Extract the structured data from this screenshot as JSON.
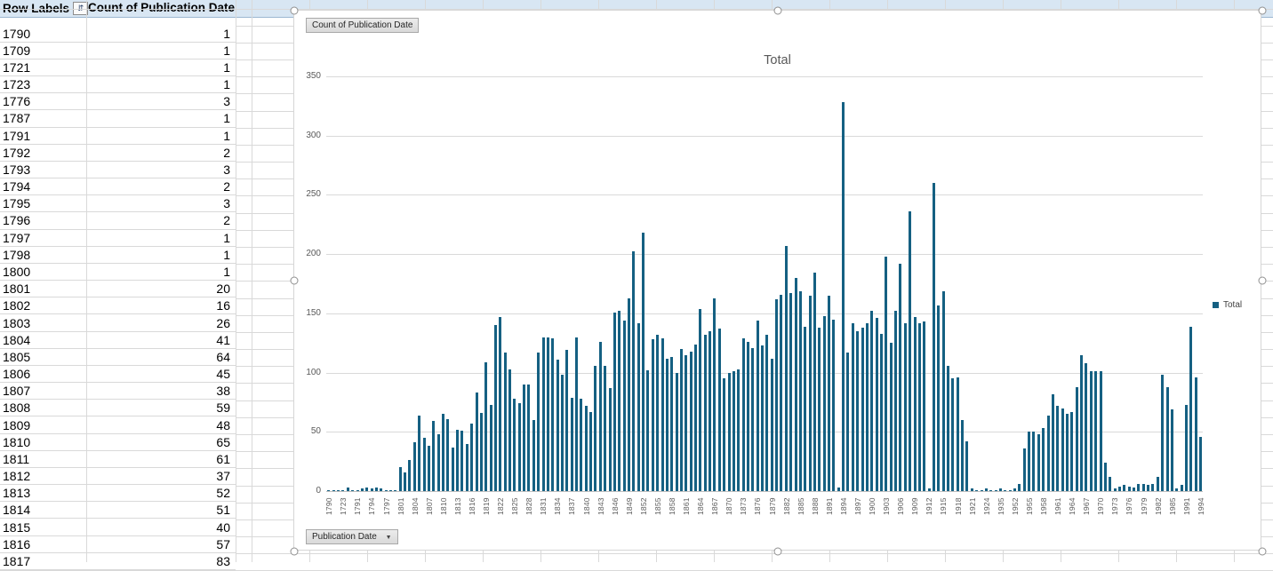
{
  "sheet": {
    "gridline_color": "#d9d9d9",
    "row_height": 19.18,
    "column_lines_x": [
      97,
      265,
      283
    ],
    "body_column_pitch": 65
  },
  "pivot_table": {
    "header": {
      "row_labels": "Row Labels",
      "values_label": "Count of Publication Date",
      "sort_icon": "⇵",
      "header_bg": "#d8e6f3"
    },
    "rows": [
      [
        "1790",
        1
      ],
      [
        "1709",
        1
      ],
      [
        "1721",
        1
      ],
      [
        "1723",
        1
      ],
      [
        "1776",
        3
      ],
      [
        "1787",
        1
      ],
      [
        "1791",
        1
      ],
      [
        "1792",
        2
      ],
      [
        "1793",
        3
      ],
      [
        "1794",
        2
      ],
      [
        "1795",
        3
      ],
      [
        "1796",
        2
      ],
      [
        "1797",
        1
      ],
      [
        "1798",
        1
      ],
      [
        "1800",
        1
      ],
      [
        "1801",
        20
      ],
      [
        "1802",
        16
      ],
      [
        "1803",
        26
      ],
      [
        "1804",
        41
      ],
      [
        "1805",
        64
      ],
      [
        "1806",
        45
      ],
      [
        "1807",
        38
      ],
      [
        "1808",
        59
      ],
      [
        "1809",
        48
      ],
      [
        "1810",
        65
      ],
      [
        "1811",
        61
      ],
      [
        "1812",
        37
      ],
      [
        "1813",
        52
      ],
      [
        "1814",
        51
      ],
      [
        "1815",
        40
      ],
      [
        "1816",
        57
      ],
      [
        "1817",
        83
      ]
    ]
  },
  "chart": {
    "value_field_button": "Count of Publication Date",
    "axis_field_button": "Publication Date",
    "axis_field_arrow": "▼",
    "title": "Total",
    "legend_label": "Total",
    "bar_color": "#156082",
    "text_color": "#595959",
    "y_ticks": [
      0,
      50,
      100,
      150,
      200,
      250,
      300,
      350
    ],
    "x_label_interval": 3
  },
  "chart_data": {
    "type": "bar",
    "title": "Total",
    "series_name": "Total",
    "xlabel": "Publication Date",
    "ylabel": "Count of Publication Date",
    "ylim": [
      0,
      350
    ],
    "grid": true,
    "legend_position": "right",
    "categories": [
      "1790",
      "1709",
      "1721",
      "1723",
      "1776",
      "1787",
      "1791",
      "1792",
      "1793",
      "1794",
      "1795",
      "1796",
      "1797",
      "1798",
      "1800",
      "1801",
      "1802",
      "1803",
      "1804",
      "1805",
      "1806",
      "1807",
      "1808",
      "1809",
      "1810",
      "1811",
      "1812",
      "1813",
      "1814",
      "1815",
      "1816",
      "1817",
      "1818",
      "1819",
      "1820",
      "1821",
      "1822",
      "1823",
      "1824",
      "1825",
      "1826",
      "1827",
      "1828",
      "1829",
      "1830",
      "1831",
      "1832",
      "1833",
      "1834",
      "1835",
      "1836",
      "1837",
      "1838",
      "1839",
      "1840",
      "1841",
      "1842",
      "1843",
      "1844",
      "1845",
      "1846",
      "1847",
      "1848",
      "1849",
      "1850",
      "1851",
      "1852",
      "1853",
      "1854",
      "1855",
      "1856",
      "1857",
      "1858",
      "1859",
      "1860",
      "1861",
      "1862",
      "1863",
      "1864",
      "1865",
      "1866",
      "1867",
      "1868",
      "1869",
      "1870",
      "1871",
      "1872",
      "1873",
      "1874",
      "1875",
      "1876",
      "1877",
      "1878",
      "1879",
      "1880",
      "1881",
      "1882",
      "1883",
      "1884",
      "1885",
      "1886",
      "1887",
      "1888",
      "1889",
      "1890",
      "1891",
      "1892",
      "1893",
      "1894",
      "1895",
      "1896",
      "1897",
      "1898",
      "1899",
      "1900",
      "1901",
      "1902",
      "1903",
      "1904",
      "1905",
      "1906",
      "1907",
      "1908",
      "1909",
      "1910",
      "1911",
      "1912",
      "1913",
      "1914",
      "1915",
      "1916",
      "1917",
      "1918",
      "1919",
      "1920",
      "1921",
      "1922",
      "1923",
      "1924",
      "1928",
      "1932",
      "1935",
      "1939",
      "1947",
      "1952",
      "1953",
      "1954",
      "1955",
      "1956",
      "1957",
      "1958",
      "1959",
      "1960",
      "1961",
      "1962",
      "1963",
      "1964",
      "1965",
      "1966",
      "1967",
      "1968",
      "1969",
      "1970",
      "1971",
      "1972",
      "1973",
      "1974",
      "1975",
      "1976",
      "1977",
      "1978",
      "1979",
      "1980",
      "1981",
      "1982",
      "1983",
      "1984",
      "1985",
      "1986",
      "1988",
      "1991",
      "1992",
      "1993",
      "1994"
    ],
    "values": [
      1,
      1,
      1,
      1,
      3,
      1,
      1,
      2,
      3,
      2,
      3,
      2,
      1,
      1,
      1,
      20,
      16,
      26,
      41,
      64,
      45,
      38,
      59,
      48,
      65,
      61,
      37,
      52,
      51,
      40,
      57,
      83,
      66,
      109,
      73,
      140,
      147,
      117,
      103,
      78,
      74,
      90,
      90,
      60,
      117,
      130,
      130,
      129,
      111,
      98,
      119,
      79,
      130,
      78,
      72,
      67,
      106,
      126,
      106,
      87,
      151,
      152,
      144,
      163,
      202,
      142,
      218,
      102,
      128,
      132,
      129,
      112,
      113,
      100,
      120,
      115,
      118,
      124,
      154,
      132,
      135,
      163,
      137,
      95,
      100,
      101,
      103,
      129,
      126,
      121,
      144,
      123,
      132,
      112,
      162,
      166,
      207,
      167,
      180,
      169,
      139,
      165,
      184,
      138,
      148,
      165,
      145,
      3,
      328,
      117,
      142,
      135,
      138,
      142,
      152,
      146,
      133,
      198,
      125,
      152,
      192,
      142,
      236,
      147,
      142,
      143,
      2,
      260,
      157,
      169,
      106,
      95,
      96,
      60,
      42,
      2,
      1,
      1,
      2,
      1,
      1,
      2,
      1,
      1,
      2,
      6,
      36,
      50,
      50,
      48,
      53,
      64,
      82,
      72,
      70,
      65,
      67,
      88,
      115,
      108,
      101,
      101,
      101,
      24,
      12,
      2,
      4,
      5,
      4,
      3,
      6,
      6,
      5,
      6,
      12,
      98,
      88,
      69,
      2,
      5,
      73,
      139,
      96,
      46
    ]
  }
}
